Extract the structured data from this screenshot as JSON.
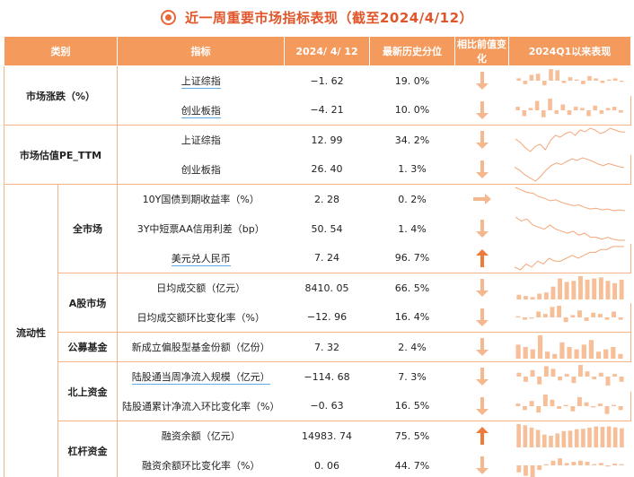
{
  "title": "近一周重要市场指标表现（截至2024/4/12）",
  "headers": {
    "category": "类别",
    "indicator": "指标",
    "date": "2024/ 4/ 12",
    "percentile": "最新历史分位",
    "change": "相比前值变化",
    "since": "2024Q1以来表现"
  },
  "colors": {
    "header_bg": "#f49a5d",
    "accent": "#f0894a",
    "line": "#f3b48a"
  },
  "groups": {
    "market": "市场涨跌（%）",
    "valuation": "市场估值PE_TTM",
    "liquidity": "流动性",
    "all_market": "全市场",
    "a_share": "A股市场",
    "fund": "公募基金",
    "north": "北上资金",
    "margin": "杠杆资金"
  },
  "rows": [
    {
      "indicator": "上证综指",
      "value": "−1. 62",
      "pct": "19. 0%",
      "dir": "down"
    },
    {
      "indicator": "创业板指",
      "value": "−4. 21",
      "pct": "10. 0%",
      "dir": "down"
    },
    {
      "indicator": "上证综指",
      "value": "12. 99",
      "pct": "34. 2%",
      "dir": "down"
    },
    {
      "indicator": "创业板指",
      "value": "26. 40",
      "pct": "1. 3%",
      "dir": "down"
    },
    {
      "indicator": "10Y国债到期收益率（%）",
      "value": "2. 28",
      "pct": "0. 2%",
      "dir": "flat"
    },
    {
      "indicator": "3Y中短票AA信用利差（bp）",
      "value": "50. 54",
      "pct": "1. 4%",
      "dir": "down"
    },
    {
      "indicator": "美元兑人民币",
      "value": "7. 24",
      "pct": "96. 7%",
      "dir": "up"
    },
    {
      "indicator": "日均成交额（亿元）",
      "value": "8410. 05",
      "pct": "66. 5%",
      "dir": "down"
    },
    {
      "indicator": "日均成交额环比变化率（%）",
      "value": "−12. 96",
      "pct": "16. 4%",
      "dir": "down"
    },
    {
      "indicator": "新成立偏股型基金份额（亿份）",
      "value": "7. 32",
      "pct": "2. 4%",
      "dir": "down"
    },
    {
      "indicator": "陆股通当周净流入规模（亿元）",
      "value": "−114. 68",
      "pct": "7. 3%",
      "dir": "down"
    },
    {
      "indicator": "陆股通累计净流入环比变化率（%）",
      "value": "−0. 63",
      "pct": "16. 5%",
      "dir": "down"
    },
    {
      "indicator": "融资余额（亿元）",
      "value": "14983. 74",
      "pct": "75. 5%",
      "dir": "up"
    },
    {
      "indicator": "融资余额环比变化率（%）",
      "value": "0. 06",
      "pct": "44. 7%",
      "dir": "down"
    }
  ],
  "sparks": [
    {
      "type": "bar",
      "values": [
        0.2,
        -0.3,
        0.5,
        0.6,
        -0.4,
        1.0,
        0.9,
        -0.2,
        0.3,
        0.1,
        -0.3,
        0.4,
        0.2,
        -0.2,
        0.1,
        0.2,
        -0.1
      ]
    },
    {
      "type": "bar",
      "values": [
        0.3,
        -0.5,
        0.2,
        0.8,
        -0.6,
        1.0,
        -0.3,
        0.5,
        -0.4,
        0.3,
        0.2,
        -0.5,
        0.4,
        -0.3,
        0.2,
        0.3,
        -0.2
      ]
    },
    {
      "type": "line",
      "values": [
        12.6,
        12.4,
        12.1,
        11.9,
        12.2,
        12.3,
        12.0,
        12.5,
        12.8,
        12.7,
        12.9,
        13.0,
        12.8,
        13.1,
        13.0,
        13.2,
        13.1,
        12.9,
        13.0,
        13.2,
        13.1,
        13.0,
        12.99
      ]
    },
    {
      "type": "line",
      "values": [
        26.5,
        25.9,
        25.0,
        24.4,
        23.8,
        24.7,
        25.9,
        26.8,
        27.3,
        27.0,
        27.6,
        28.1,
        27.8,
        28.3,
        28.0,
        27.6,
        27.1,
        26.8,
        27.2,
        26.9,
        26.6,
        26.4
      ]
    },
    {
      "type": "line",
      "values": [
        2.56,
        2.53,
        2.5,
        2.49,
        2.45,
        2.43,
        2.4,
        2.41,
        2.38,
        2.36,
        2.34,
        2.35,
        2.32,
        2.3,
        2.31,
        2.29,
        2.3,
        2.28,
        2.29,
        2.28
      ]
    },
    {
      "type": "line",
      "values": [
        62,
        60,
        61,
        58,
        57,
        56,
        58,
        56,
        55,
        54,
        55,
        53,
        54,
        52,
        52,
        51,
        52,
        51,
        50.5,
        50.54
      ]
    },
    {
      "type": "line",
      "values": [
        7.17,
        7.16,
        7.18,
        7.17,
        7.19,
        7.18,
        7.2,
        7.19,
        7.19,
        7.2,
        7.21,
        7.2,
        7.21,
        7.22,
        7.22,
        7.23,
        7.23,
        7.24,
        7.24,
        7.24
      ]
    },
    {
      "type": "bar",
      "values": [
        0.2,
        0.15,
        0.1,
        0.25,
        0.3,
        0.55,
        0.9,
        0.75,
        0.8,
        1.0,
        0.85,
        0.9,
        0.95,
        0.8,
        0.7,
        0.85
      ]
    },
    {
      "type": "bar",
      "values": [
        0.1,
        -0.2,
        -0.1,
        0.5,
        0.3,
        0.9,
        1.0,
        -0.4,
        0.2,
        0.6,
        -0.3,
        0.4,
        0.3,
        -0.2,
        0.5,
        -0.2
      ]
    },
    {
      "type": "bar",
      "values": [
        0.6,
        0.5,
        0.4,
        1.0,
        0.3,
        0.2,
        0.7,
        0.5,
        0.4,
        0.6,
        0.8,
        0.3,
        0.4,
        0.5,
        0.2
      ]
    },
    {
      "type": "bar",
      "values": [
        0.3,
        -0.4,
        0.5,
        -0.6,
        0.8,
        0.6,
        -0.3,
        0.2,
        -0.5,
        0.9,
        0.4,
        -0.2,
        0.3,
        -0.7,
        0.2,
        -0.4
      ]
    },
    {
      "type": "bar",
      "values": [
        0.2,
        -0.3,
        0.4,
        -0.5,
        0.9,
        0.5,
        -0.2,
        0.1,
        -0.4,
        0.7,
        0.3,
        -0.1,
        0.2,
        -0.6,
        0.1,
        -0.3
      ]
    },
    {
      "type": "bar",
      "values": [
        1.0,
        0.95,
        0.85,
        0.75,
        0.55,
        0.5,
        0.6,
        0.7,
        0.72,
        0.78,
        0.8,
        0.85,
        0.9,
        0.88,
        0.9,
        0.86,
        0.82
      ]
    },
    {
      "type": "bar",
      "values": [
        -0.6,
        -0.9,
        -1.0,
        -0.4,
        0.1,
        0.4,
        0.6,
        0.2,
        0.3,
        0.4,
        0.3,
        0.1,
        0.2,
        -0.1,
        0.15,
        0.1
      ]
    }
  ]
}
